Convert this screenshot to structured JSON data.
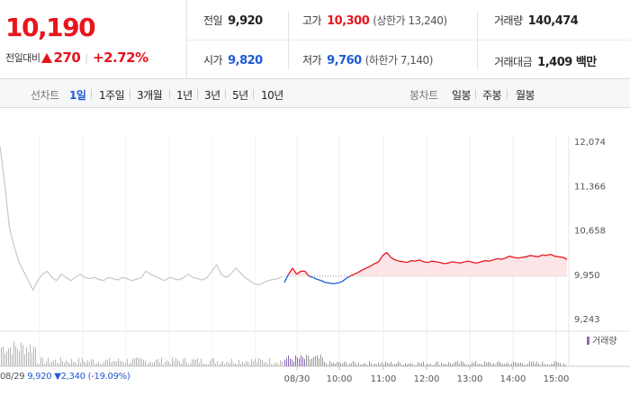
{
  "header": {
    "price": "10,190",
    "change_label": "전일대비",
    "change": "270",
    "change_pct": "+2.72%",
    "stats": {
      "prev_close": {
        "label": "전일",
        "value": "9,920"
      },
      "open": {
        "label": "시가",
        "value": "9,820"
      },
      "high": {
        "label": "고가",
        "value": "10,300",
        "sub": "(상한가 13,240)"
      },
      "low": {
        "label": "저가",
        "value": "9,760",
        "sub": "(하한가 7,140)"
      },
      "volume": {
        "label": "거래량",
        "value": "140,474"
      },
      "amount": {
        "label": "거래대금",
        "value": "1,409 백만"
      }
    }
  },
  "tabs": {
    "line_label": "선차트",
    "line_periods": [
      "1일",
      "1주일",
      "3개월",
      "1년",
      "3년",
      "5년",
      "10년"
    ],
    "line_active": "1일",
    "candle_label": "봉차트",
    "candle_periods": [
      "일봉",
      "주봉",
      "월봉"
    ]
  },
  "footer": {
    "date": "08/29",
    "text": "9,920 ▼2,340 (-19.09%)"
  },
  "colors": {
    "up": "#e8151d",
    "down": "#1e5bd6",
    "ref": "#9a9a9a",
    "prev": "#c8c8c8",
    "volume": "#b7b7b7",
    "volume_today": "#8a6bb8"
  },
  "chart_data": {
    "type": "line",
    "ylim": [
      9243,
      12074
    ],
    "y_ticks": [
      "12,074",
      "11,366",
      "10,658",
      "9,950",
      "9,243"
    ],
    "reference_value": 9920,
    "x_ticks": [
      "08/30",
      "10:00",
      "11:00",
      "12:00",
      "13:00",
      "14:00",
      "15:00"
    ],
    "legend": "거래량",
    "series": [
      {
        "day": "08/29",
        "values": [
          12000,
          11400,
          10700,
          10400,
          10150,
          10000,
          9850,
          9700,
          9850,
          9950,
          10000,
          9900,
          9850,
          9950,
          9900,
          9850,
          9900,
          9950,
          9900,
          9880,
          9900,
          9870,
          9850,
          9900,
          9880,
          9860,
          9900,
          9880,
          9850,
          9870,
          9900,
          10000,
          9950,
          9920,
          9880,
          9850,
          9900,
          9880,
          9860,
          9900,
          9950,
          9900,
          9880,
          9860,
          9900,
          10000,
          10100,
          9950,
          9900,
          9950,
          10050,
          9980,
          9900,
          9850,
          9800,
          9780,
          9820,
          9850,
          9870,
          9880,
          9920
        ]
      },
      {
        "day": "08/30",
        "values": [
          9820,
          9950,
          10050,
          9950,
          10000,
          10000,
          9920,
          9900,
          9870,
          9850,
          9820,
          9810,
          9800,
          9810,
          9830,
          9880,
          9920,
          9950,
          9980,
          10020,
          10050,
          10080,
          10120,
          10150,
          10250,
          10300,
          10220,
          10180,
          10160,
          10150,
          10140,
          10170,
          10160,
          10180,
          10150,
          10140,
          10160,
          10150,
          10140,
          10120,
          10130,
          10150,
          10140,
          10130,
          10150,
          10160,
          10140,
          10130,
          10150,
          10170,
          10160,
          10180,
          10200,
          10190,
          10210,
          10240,
          10220,
          10210,
          10220,
          10230,
          10250,
          10240,
          10230,
          10260,
          10250,
          10270,
          10240,
          10230,
          10220,
          10190
        ]
      }
    ]
  }
}
